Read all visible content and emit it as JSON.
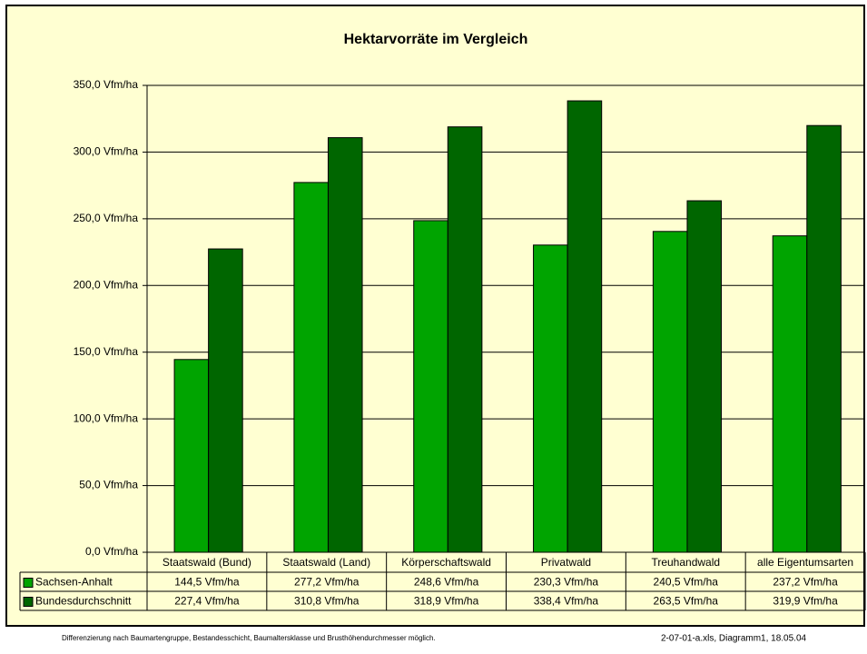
{
  "chart_data": {
    "type": "bar",
    "title": "Hektarvorräte im Vergleich",
    "categories": [
      "Staatswald (Bund)",
      "Staatswald (Land)",
      "Körperschaftswald",
      "Privatwald",
      "Treuhandwald",
      "alle Eigentumsarten"
    ],
    "series": [
      {
        "name": "Sachsen-Anhalt",
        "color": "#00a400",
        "values": [
          144.5,
          277.2,
          248.6,
          230.3,
          240.5,
          237.2
        ],
        "value_labels": [
          "144,5 Vfm/ha",
          "277,2 Vfm/ha",
          "248,6 Vfm/ha",
          "230,3 Vfm/ha",
          "240,5 Vfm/ha",
          "237,2 Vfm/ha"
        ]
      },
      {
        "name": "Bundesdurchschnitt",
        "color": "#006600",
        "values": [
          227.4,
          310.8,
          318.9,
          338.4,
          263.5,
          319.9
        ],
        "value_labels": [
          "227,4 Vfm/ha",
          "310,8 Vfm/ha",
          "318,9 Vfm/ha",
          "338,4 Vfm/ha",
          "263,5 Vfm/ha",
          "319,9 Vfm/ha"
        ]
      }
    ],
    "ylim": [
      0,
      350
    ],
    "yticks": [
      {
        "value": 0,
        "label": "0,0 Vfm/ha"
      },
      {
        "value": 50,
        "label": "50,0 Vfm/ha"
      },
      {
        "value": 100,
        "label": "100,0 Vfm/ha"
      },
      {
        "value": 150,
        "label": "150,0 Vfm/ha"
      },
      {
        "value": 200,
        "label": "200,0 Vfm/ha"
      },
      {
        "value": 250,
        "label": "250,0 Vfm/ha"
      },
      {
        "value": 300,
        "label": "300,0 Vfm/ha"
      },
      {
        "value": 350,
        "label": "350,0 Vfm/ha"
      }
    ],
    "grid": true,
    "notes": [
      "Differenzierung nach Baumartengruppe, Bestandesschicht, Baumaltersklasse und Brusthöhendurchmesser möglich.",
      "2-07-01-a.xls, Diagramm1, 18.05.04"
    ]
  }
}
